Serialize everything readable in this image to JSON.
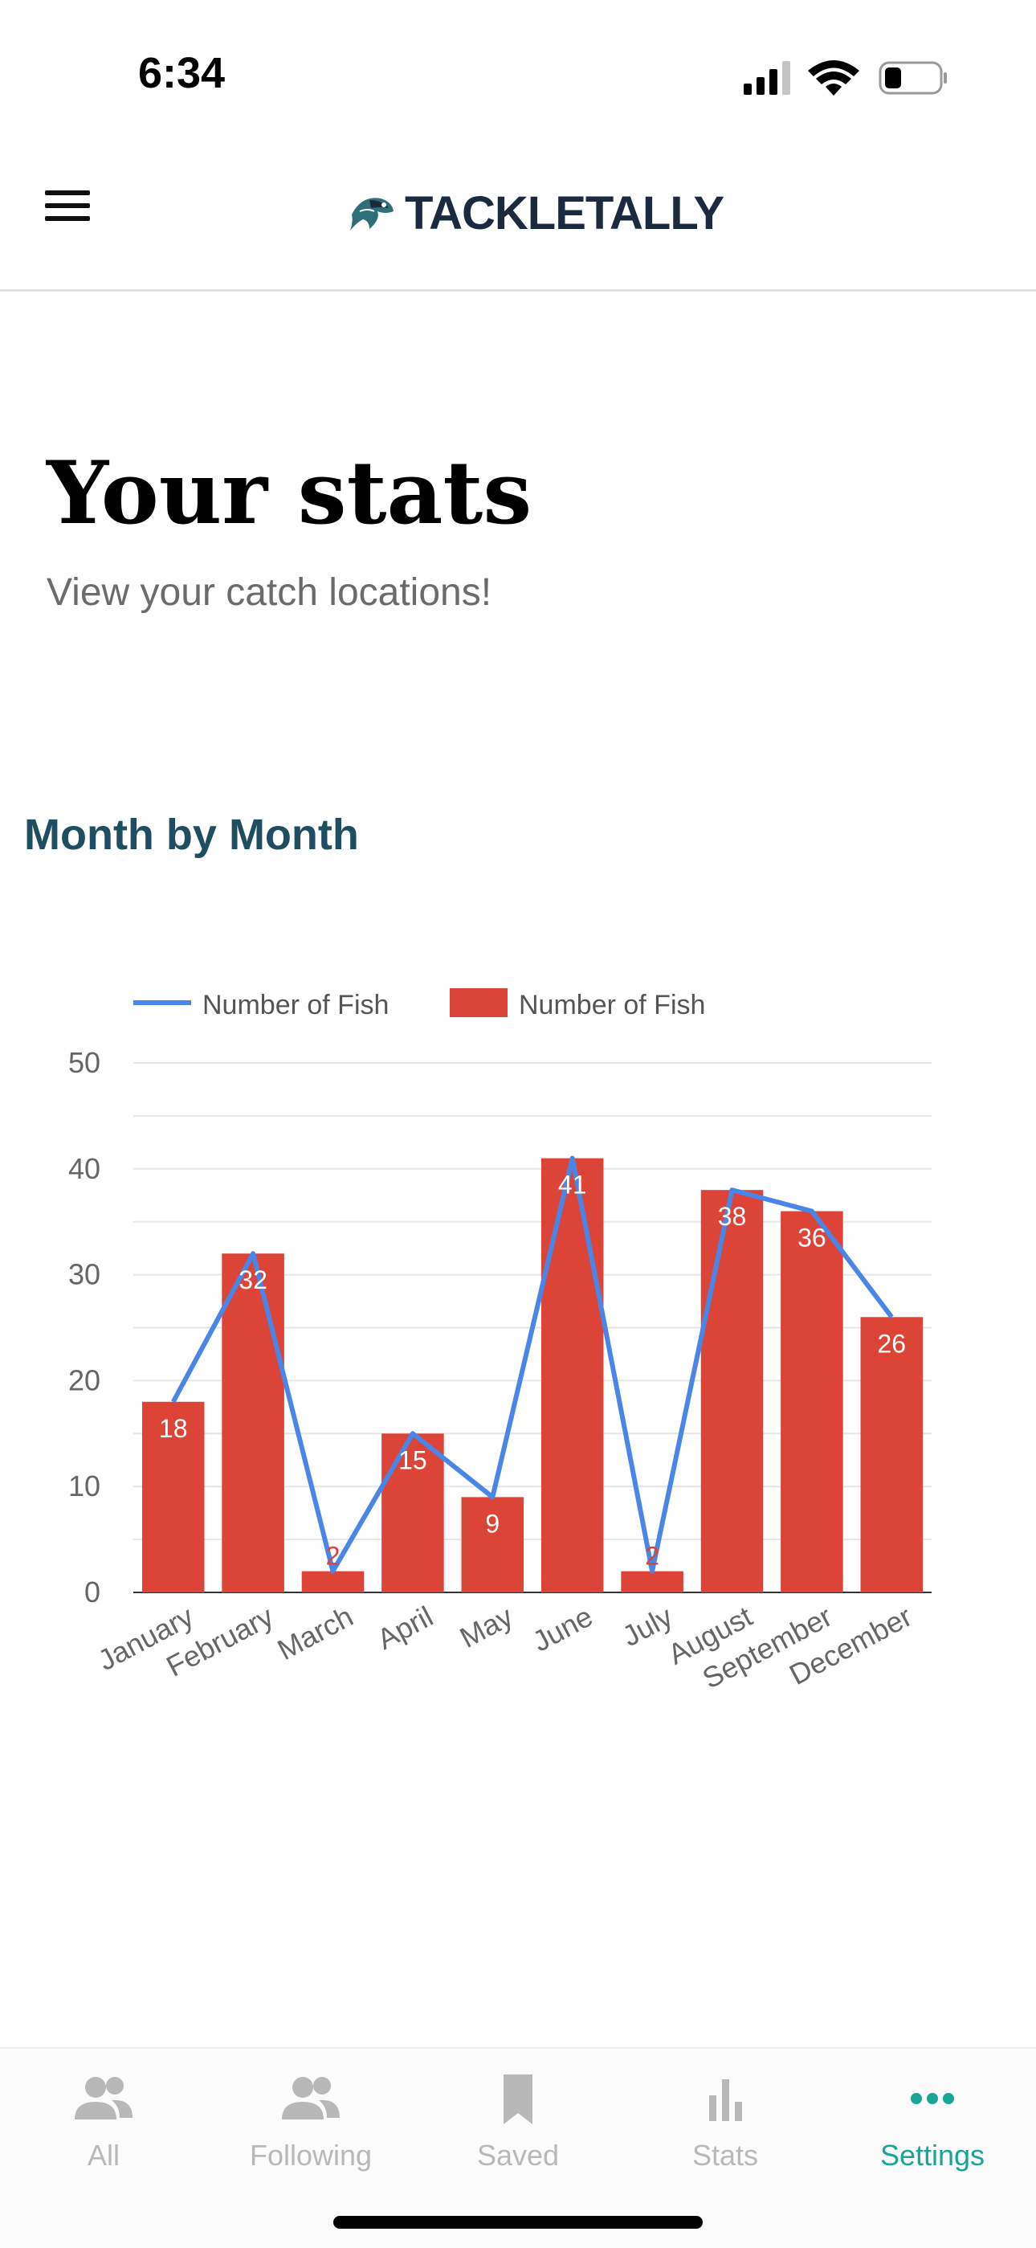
{
  "status_bar": {
    "time": "6:34"
  },
  "header": {
    "brand": "TACKLETALLY"
  },
  "page": {
    "title": "Your stats",
    "subtitle": "View your catch locations!"
  },
  "section": {
    "title": "Month by Month"
  },
  "chart_data": {
    "type": "bar",
    "categories": [
      "January",
      "February",
      "March",
      "April",
      "May",
      "June",
      "July",
      "August",
      "September",
      "December"
    ],
    "series": [
      {
        "name": "Number of Fish",
        "kind": "line",
        "color": "#4a86e8",
        "values": [
          18,
          32,
          2,
          15,
          9,
          41,
          2,
          38,
          36,
          26
        ]
      },
      {
        "name": "Number of Fish",
        "kind": "bar",
        "color": "#db4437",
        "values": [
          18,
          32,
          2,
          15,
          9,
          41,
          2,
          38,
          36,
          26
        ]
      }
    ],
    "data_labels": [
      "18",
      "32",
      "2",
      "15",
      "9",
      "41",
      "2",
      "38",
      "36",
      "26"
    ],
    "y_ticks": [
      "0",
      "10",
      "20",
      "30",
      "40",
      "50"
    ],
    "ylim": [
      0,
      50
    ],
    "grid": true,
    "legend_position": "top-left"
  },
  "tab_bar": {
    "tabs": [
      {
        "label": "All",
        "icon": "users-icon"
      },
      {
        "label": "Following",
        "icon": "users-icon"
      },
      {
        "label": "Saved",
        "icon": "bookmark-icon"
      },
      {
        "label": "Stats",
        "icon": "bar-chart-icon"
      },
      {
        "label": "Settings",
        "icon": "more-icon"
      }
    ],
    "active_color": "#17a596",
    "inactive_color": "#b8b8b8"
  }
}
